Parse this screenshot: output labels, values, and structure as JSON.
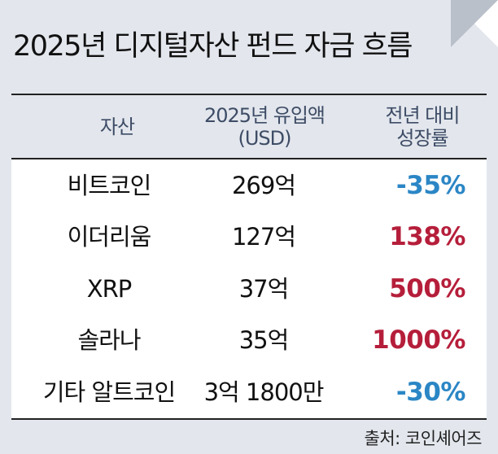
{
  "title": "2025년 디지털자산 펀드 자금 흐름",
  "header": {
    "col1": "자산",
    "col2_line1": "2025년 유입액",
    "col2_line2": "(USD)",
    "col3_line1": "전년 대비",
    "col3_line2": "성장률"
  },
  "rows": [
    {
      "asset": "비트코인",
      "inflow": "269억",
      "growth": "-35%",
      "growth_color": "#2b86c5"
    },
    {
      "asset": "이더리움",
      "inflow": "127억",
      "growth": "138%",
      "growth_color": "#b51e3a"
    },
    {
      "asset": "XRP",
      "inflow": "37억",
      "growth": "500%",
      "growth_color": "#b51e3a"
    },
    {
      "asset": "솔라나",
      "inflow": "35억",
      "growth": "1000%",
      "growth_color": "#b51e3a"
    },
    {
      "asset": "기타 알트코인",
      "inflow": "3억 1800만",
      "growth": "-30%",
      "growth_color": "#2b86c5"
    }
  ],
  "source": "출처: 코인셰어즈",
  "colors": {
    "panel_background": "#e3e7ed",
    "header_text": "#3e4c66",
    "negative": "#2b86c5",
    "positive": "#b51e3a"
  }
}
